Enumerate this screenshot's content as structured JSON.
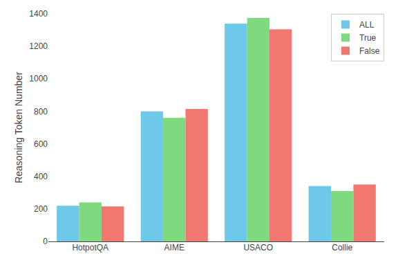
{
  "chart_data": {
    "type": "bar",
    "categories": [
      "HotpotQA",
      "AIME",
      "USACO",
      "Collie"
    ],
    "series": [
      {
        "name": "ALL",
        "color": "#6EC8EA",
        "values": [
          220,
          800,
          1340,
          340
        ]
      },
      {
        "name": "True",
        "color": "#7FD97F",
        "values": [
          240,
          760,
          1375,
          310
        ]
      },
      {
        "name": "False",
        "color": "#F07870",
        "values": [
          215,
          815,
          1305,
          350
        ]
      }
    ],
    "ylabel": "Reasoning Token Number",
    "ylim": [
      0,
      1400
    ],
    "yticks": [
      0,
      200,
      400,
      600,
      800,
      1000,
      1200,
      1400
    ],
    "grid": false,
    "legend": "upper right"
  }
}
